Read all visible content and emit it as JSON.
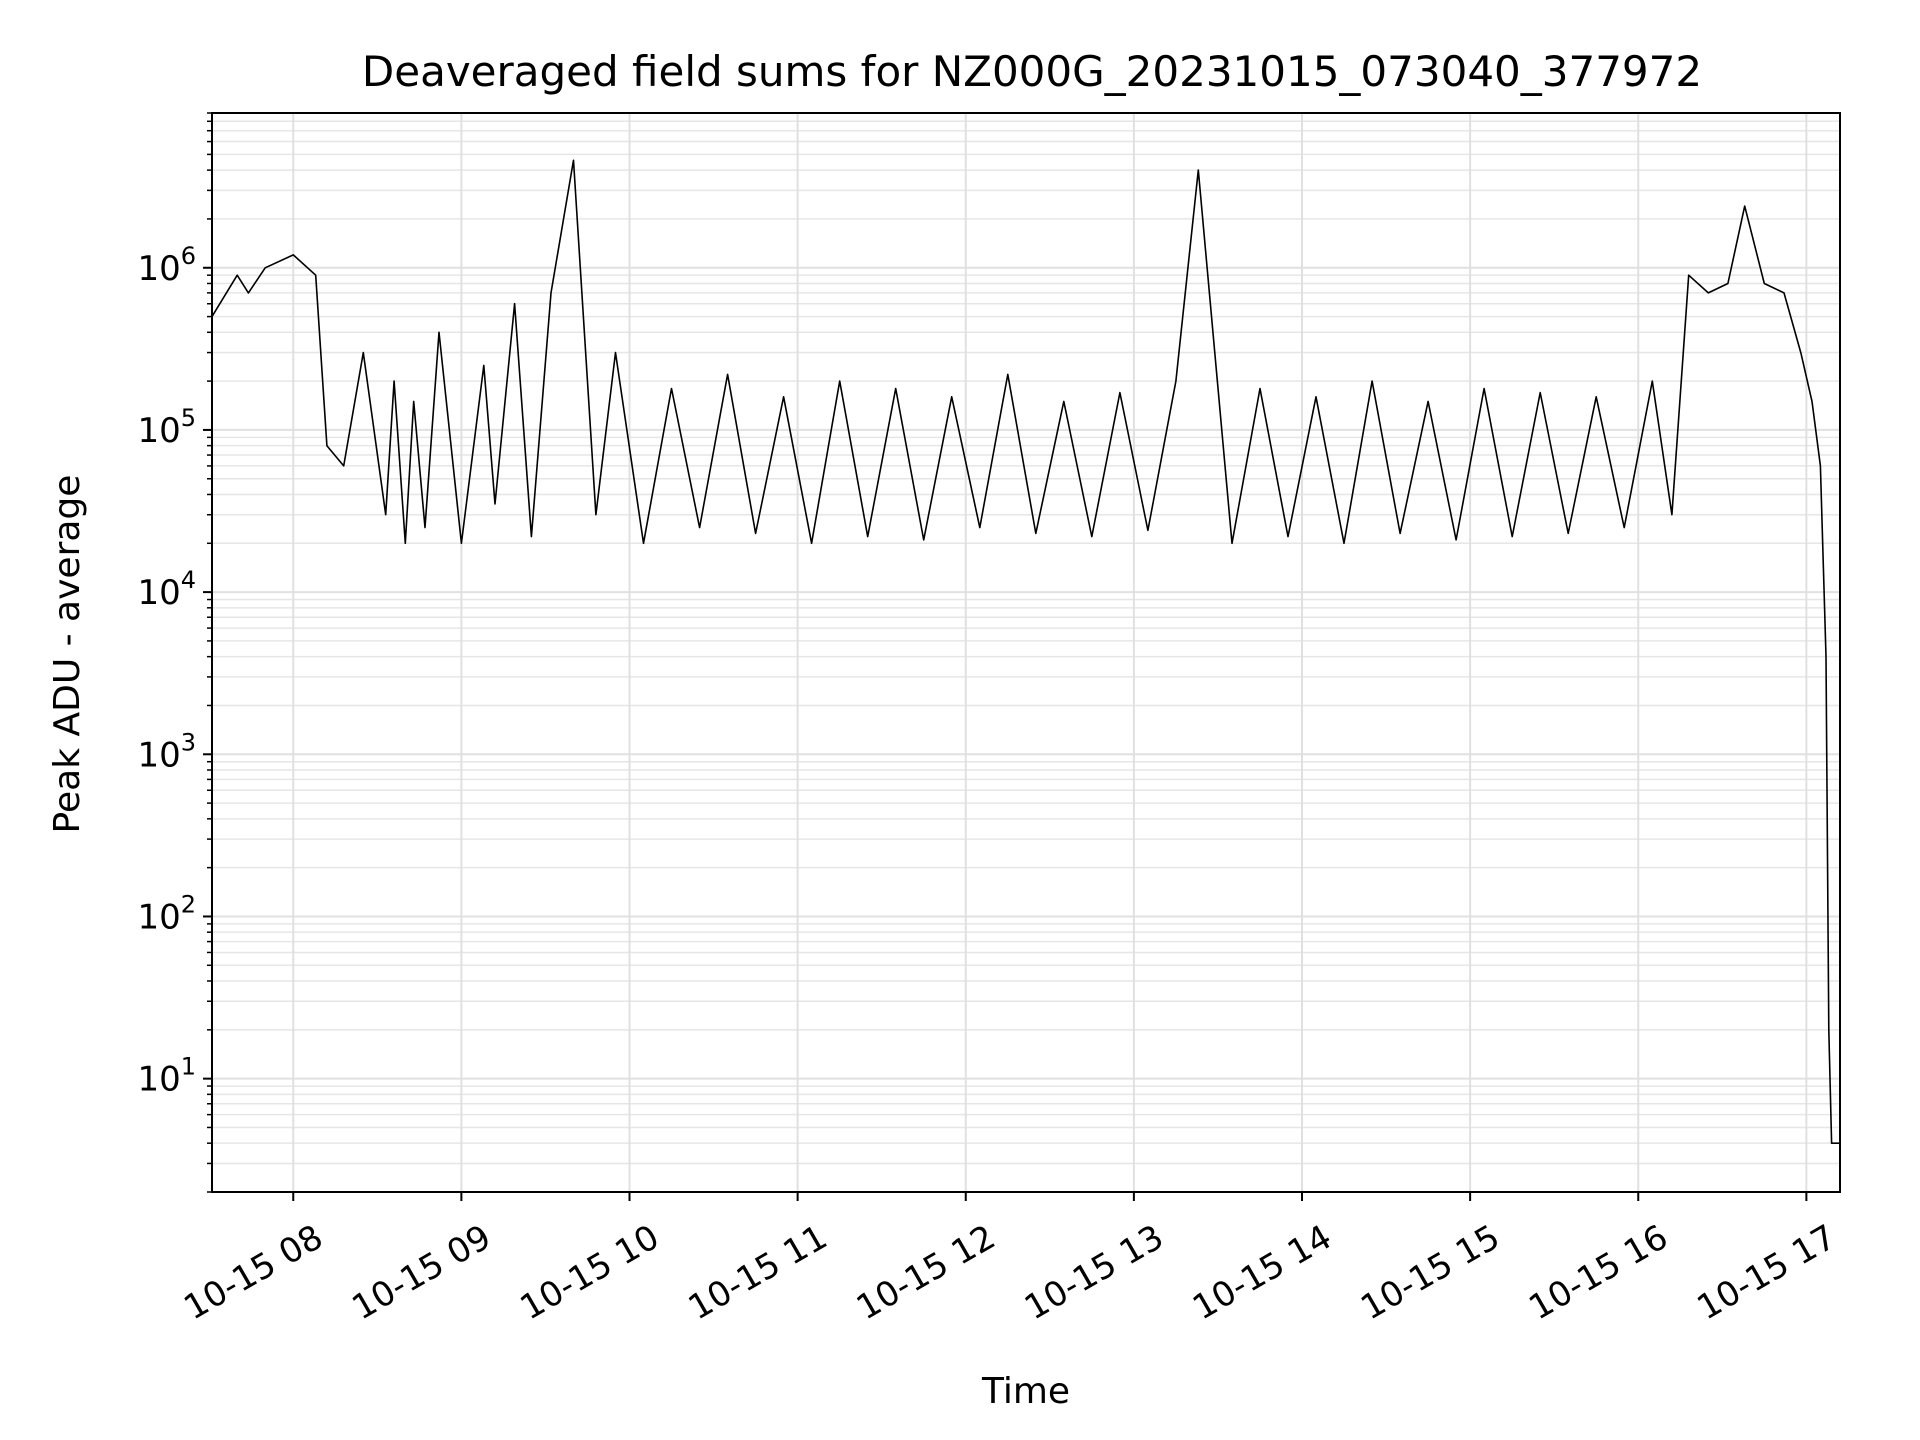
{
  "chart_data": {
    "type": "line",
    "title": "Deaveraged field sums for NZ000G_20231015_073040_377972",
    "xlabel": "Time",
    "ylabel": "Peak ADU - average",
    "yscale": "log",
    "xlim": [
      "2023-10-15 07:31",
      "2023-10-15 17:12"
    ],
    "ylim": [
      2,
      9000000
    ],
    "grid": true,
    "legend": "none",
    "line_color": "#000000",
    "x_ticks": [
      "10-15 08",
      "10-15 09",
      "10-15 10",
      "10-15 11",
      "10-15 12",
      "10-15 13",
      "10-15 14",
      "10-15 15",
      "10-15 16",
      "10-15 17"
    ],
    "y_ticks": [
      {
        "base": "10",
        "exp": "1",
        "value": 10
      },
      {
        "base": "10",
        "exp": "2",
        "value": 100
      },
      {
        "base": "10",
        "exp": "3",
        "value": 1000
      },
      {
        "base": "10",
        "exp": "4",
        "value": 10000
      },
      {
        "base": "10",
        "exp": "5",
        "value": 100000
      },
      {
        "base": "10",
        "exp": "6",
        "value": 1000000
      }
    ],
    "series": [
      {
        "x": [
          "2023-10-15 07:31",
          "2023-10-15 07:40",
          "2023-10-15 07:44",
          "2023-10-15 07:50",
          "2023-10-15 08:00",
          "2023-10-15 08:08",
          "2023-10-15 08:12",
          "2023-10-15 08:18",
          "2023-10-15 08:25",
          "2023-10-15 08:33",
          "2023-10-15 08:36",
          "2023-10-15 08:40",
          "2023-10-15 08:43",
          "2023-10-15 08:47",
          "2023-10-15 08:52",
          "2023-10-15 09:00",
          "2023-10-15 09:08",
          "2023-10-15 09:12",
          "2023-10-15 09:19",
          "2023-10-15 09:25",
          "2023-10-15 09:32",
          "2023-10-15 09:40",
          "2023-10-15 09:48",
          "2023-10-15 09:55",
          "2023-10-15 10:05",
          "2023-10-15 10:15",
          "2023-10-15 10:25",
          "2023-10-15 10:35",
          "2023-10-15 10:45",
          "2023-10-15 10:55",
          "2023-10-15 11:05",
          "2023-10-15 11:15",
          "2023-10-15 11:25",
          "2023-10-15 11:35",
          "2023-10-15 11:45",
          "2023-10-15 11:55",
          "2023-10-15 12:05",
          "2023-10-15 12:15",
          "2023-10-15 12:25",
          "2023-10-15 12:35",
          "2023-10-15 12:45",
          "2023-10-15 12:55",
          "2023-10-15 13:05",
          "2023-10-15 13:15",
          "2023-10-15 13:23",
          "2023-10-15 13:35",
          "2023-10-15 13:45",
          "2023-10-15 13:55",
          "2023-10-15 14:05",
          "2023-10-15 14:15",
          "2023-10-15 14:25",
          "2023-10-15 14:35",
          "2023-10-15 14:45",
          "2023-10-15 14:55",
          "2023-10-15 15:05",
          "2023-10-15 15:15",
          "2023-10-15 15:25",
          "2023-10-15 15:35",
          "2023-10-15 15:45",
          "2023-10-15 15:55",
          "2023-10-15 16:05",
          "2023-10-15 16:12",
          "2023-10-15 16:18",
          "2023-10-15 16:25",
          "2023-10-15 16:32",
          "2023-10-15 16:38",
          "2023-10-15 16:45",
          "2023-10-15 16:52",
          "2023-10-15 16:58",
          "2023-10-15 17:02",
          "2023-10-15 17:05",
          "2023-10-15 17:07",
          "2023-10-15 17:08",
          "2023-10-15 17:09",
          "2023-10-15 17:12"
        ],
        "y": [
          500000,
          900000,
          700000,
          1000000,
          1200000,
          900000,
          80000,
          60000,
          300000,
          30000,
          200000,
          20000,
          150000,
          25000,
          400000,
          20000,
          250000,
          35000,
          600000,
          22000,
          700000,
          4600000,
          30000,
          300000,
          20000,
          180000,
          25000,
          220000,
          23000,
          160000,
          20000,
          200000,
          22000,
          180000,
          21000,
          160000,
          25000,
          220000,
          23000,
          150000,
          22000,
          170000,
          24000,
          200000,
          4000000,
          20000,
          180000,
          22000,
          160000,
          20000,
          200000,
          23000,
          150000,
          21000,
          180000,
          22000,
          170000,
          23000,
          160000,
          25000,
          200000,
          30000,
          900000,
          700000,
          800000,
          2400000,
          800000,
          700000,
          300000,
          150000,
          60000,
          4000,
          20,
          4,
          4
        ]
      }
    ]
  }
}
